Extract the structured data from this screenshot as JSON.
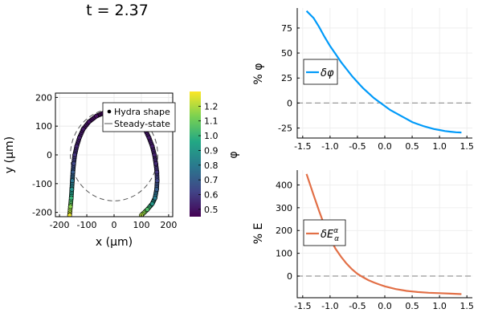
{
  "figure_title": "t = 2.37",
  "chart_data": [
    {
      "type": "scatter",
      "panel": "hydra-shape",
      "xlabel": "x (μm)",
      "ylabel": "y (μm)",
      "xlim": [
        -215,
        215
      ],
      "ylim": [
        -215,
        215
      ],
      "xticks": [
        -200,
        -100,
        0,
        100,
        200
      ],
      "yticks": [
        -200,
        -100,
        0,
        100,
        200
      ],
      "grid": true,
      "legend_position": "top-right",
      "legend": [
        {
          "label": "Hydra shape",
          "marker": "dot"
        },
        {
          "label": "Steady-state",
          "marker": "dashed-line"
        }
      ],
      "hydra_points": [
        {
          "x": -163,
          "y": -210,
          "phi": 1.28
        },
        {
          "x": -160,
          "y": -180,
          "phi": 1.15
        },
        {
          "x": -157,
          "y": -150,
          "phi": 1.0
        },
        {
          "x": -155,
          "y": -120,
          "phi": 0.88
        },
        {
          "x": -153,
          "y": -90,
          "phi": 0.78
        },
        {
          "x": -151,
          "y": -60,
          "phi": 0.7
        },
        {
          "x": -148,
          "y": -30,
          "phi": 0.63
        },
        {
          "x": -144,
          "y": 0,
          "phi": 0.58
        },
        {
          "x": -137,
          "y": 30,
          "phi": 0.54
        },
        {
          "x": -127,
          "y": 60,
          "phi": 0.52
        },
        {
          "x": -113,
          "y": 90,
          "phi": 0.5
        },
        {
          "x": -92,
          "y": 115,
          "phi": 0.49
        },
        {
          "x": -65,
          "y": 135,
          "phi": 0.48
        },
        {
          "x": -40,
          "y": 145,
          "phi": 0.47
        },
        {
          "x": 40,
          "y": 145,
          "phi": 0.47
        },
        {
          "x": 65,
          "y": 135,
          "phi": 0.48
        },
        {
          "x": 92,
          "y": 115,
          "phi": 0.49
        },
        {
          "x": 113,
          "y": 90,
          "phi": 0.5
        },
        {
          "x": 128,
          "y": 60,
          "phi": 0.51
        },
        {
          "x": 140,
          "y": 30,
          "phi": 0.52
        },
        {
          "x": 148,
          "y": 0,
          "phi": 0.53
        },
        {
          "x": 153,
          "y": -30,
          "phi": 0.55
        },
        {
          "x": 157,
          "y": -60,
          "phi": 0.58
        },
        {
          "x": 158,
          "y": -90,
          "phi": 0.63
        },
        {
          "x": 156,
          "y": -120,
          "phi": 0.7
        },
        {
          "x": 150,
          "y": -150,
          "phi": 0.8
        },
        {
          "x": 140,
          "y": -170,
          "phi": 0.9
        },
        {
          "x": 122,
          "y": -190,
          "phi": 1.05
        },
        {
          "x": 100,
          "y": -210,
          "phi": 1.2
        }
      ],
      "steady_state": {
        "cx": 0,
        "cy": 0,
        "rx": 160,
        "ry": 160
      },
      "colorbar": {
        "label": "φ",
        "min": 0.45,
        "max": 1.3,
        "ticks": [
          0.5,
          0.6,
          0.7,
          0.8,
          0.9,
          1.0,
          1.1,
          1.2
        ],
        "tick_labels": [
          "0.5",
          "0.6",
          "0.7",
          "0.8",
          "0.9",
          "1.0",
          "1.1",
          "1.2"
        ],
        "colors": [
          "#440154",
          "#414487",
          "#2a788e",
          "#22a884",
          "#7ad151",
          "#fde725"
        ]
      }
    },
    {
      "type": "line",
      "panel": "delta-phi",
      "ylabel": "% φ",
      "xlim": [
        -1.6,
        1.6
      ],
      "ylim": [
        -35,
        95
      ],
      "xticks": [
        -1.5,
        -1.0,
        -0.5,
        0.0,
        0.5,
        1.0,
        1.5
      ],
      "xtick_labels": [
        "-1.5",
        "-1.0",
        "-0.5",
        "0.0",
        "0.5",
        "1.0",
        "1.5"
      ],
      "yticks": [
        -25,
        0,
        25,
        50,
        75
      ],
      "ytick_labels": [
        "-25",
        "0",
        "25",
        "50",
        "75"
      ],
      "grid": true,
      "legend_position": "left",
      "legend": [
        {
          "label": "δφ"
        }
      ],
      "color": "#009af9",
      "reference_line": 0,
      "x": [
        -1.43,
        -1.3,
        -1.2,
        -1.1,
        -1.0,
        -0.9,
        -0.8,
        -0.7,
        -0.6,
        -0.5,
        -0.4,
        -0.3,
        -0.2,
        -0.1,
        0.0,
        0.1,
        0.2,
        0.3,
        0.4,
        0.5,
        0.6,
        0.7,
        0.8,
        0.9,
        1.0,
        1.1,
        1.2,
        1.3,
        1.4
      ],
      "y": [
        92,
        85,
        76,
        66,
        57,
        49,
        41,
        34,
        27,
        21,
        15,
        10,
        5,
        1,
        -3,
        -7,
        -10,
        -13,
        -16,
        -19,
        -21,
        -23,
        -24.5,
        -26,
        -27,
        -28,
        -28.7,
        -29.2,
        -29.5
      ]
    },
    {
      "type": "line",
      "panel": "delta-E",
      "ylabel": "% E",
      "xlim": [
        -1.6,
        1.6
      ],
      "ylim": [
        -95,
        465
      ],
      "xticks": [
        -1.5,
        -1.0,
        -0.5,
        0.0,
        0.5,
        1.0,
        1.5
      ],
      "xtick_labels": [
        "-1.5",
        "-1.0",
        "-0.5",
        "0.0",
        "0.5",
        "1.0",
        "1.5"
      ],
      "yticks": [
        0,
        100,
        200,
        300,
        400
      ],
      "ytick_labels": [
        "0",
        "100",
        "200",
        "300",
        "400"
      ],
      "grid": true,
      "legend_position": "left",
      "legend": [
        {
          "label": "δE",
          "superscript": "α",
          "subscript": "α"
        }
      ],
      "color": "#e26f46",
      "reference_line": 0,
      "x": [
        -1.43,
        -1.3,
        -1.2,
        -1.1,
        -1.0,
        -0.9,
        -0.8,
        -0.7,
        -0.6,
        -0.5,
        -0.4,
        -0.3,
        -0.2,
        -0.1,
        0.0,
        0.2,
        0.4,
        0.6,
        0.8,
        1.0,
        1.2,
        1.4
      ],
      "y": [
        448,
        355,
        285,
        220,
        165,
        120,
        85,
        55,
        30,
        10,
        -5,
        -18,
        -28,
        -37,
        -45,
        -57,
        -65,
        -70,
        -73,
        -75,
        -77,
        -79
      ]
    }
  ]
}
